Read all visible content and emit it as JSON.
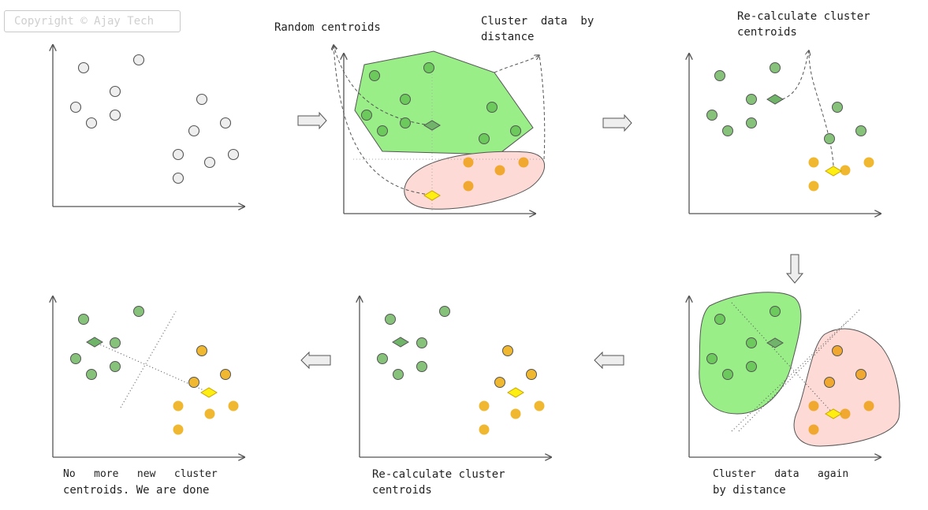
{
  "watermark": "Copyright © Ajay Tech",
  "captions": {
    "random_centroids": "Random centroids",
    "cluster_by_distance_1": "Cluster  data  by",
    "cluster_by_distance_2": "distance",
    "recalc_top_1": "Re-calculate cluster",
    "recalc_top_2": "centroids",
    "cluster_again_1": "Cluster   data   again",
    "cluster_again_2": "by distance",
    "recalc_bottom_1": "Re-calculate cluster",
    "recalc_bottom_2": "centroids",
    "done_1": "No   more   new   cluster",
    "done_2": "centroids. We are done"
  },
  "colors": {
    "unassigned_point": "#eeeeee",
    "green_point": "#86c27a",
    "green_point_bright": "#6cc95c",
    "orange_point": "#f0a830",
    "yellow_point": "#f0b830",
    "green_region": "#99ee88",
    "pink_region": "#fddad6",
    "green_centroid": "#6fb468",
    "yellow_centroid": "#ffee11",
    "axis": "#555555",
    "arrow_fill": "#eeeeee"
  },
  "icons": {
    "step_arrow": "block-arrow-icon",
    "centroid": "diamond-icon",
    "point": "circle-icon"
  }
}
